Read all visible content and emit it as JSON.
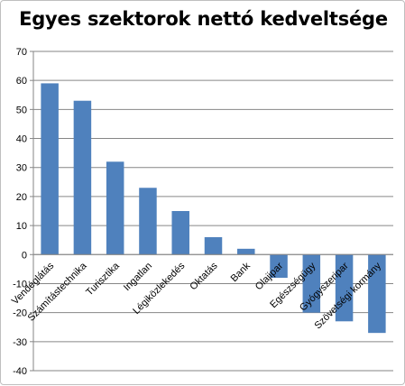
{
  "chart_data": {
    "type": "bar",
    "title": "Egyes szektorok nettó kedveltsége",
    "categories": [
      "Vendéglátás",
      "Számítástechnika",
      "Turisztika",
      "Ingatlan",
      "Légiközlekedés",
      "Oktatás",
      "Bank",
      "Olajipar",
      "Egészségügy",
      "Gyógyszeripar",
      "Szövetségi kormány"
    ],
    "values": [
      59,
      53,
      32,
      23,
      15,
      6,
      2,
      -8,
      -20,
      -23,
      -27
    ],
    "ylim": [
      -40,
      70
    ],
    "yticks": [
      70,
      60,
      50,
      40,
      30,
      20,
      10,
      0,
      -10,
      -20,
      -30,
      -40
    ],
    "xlabel": "",
    "ylabel": "",
    "grid": true,
    "bar_color": "#4f81bd"
  }
}
